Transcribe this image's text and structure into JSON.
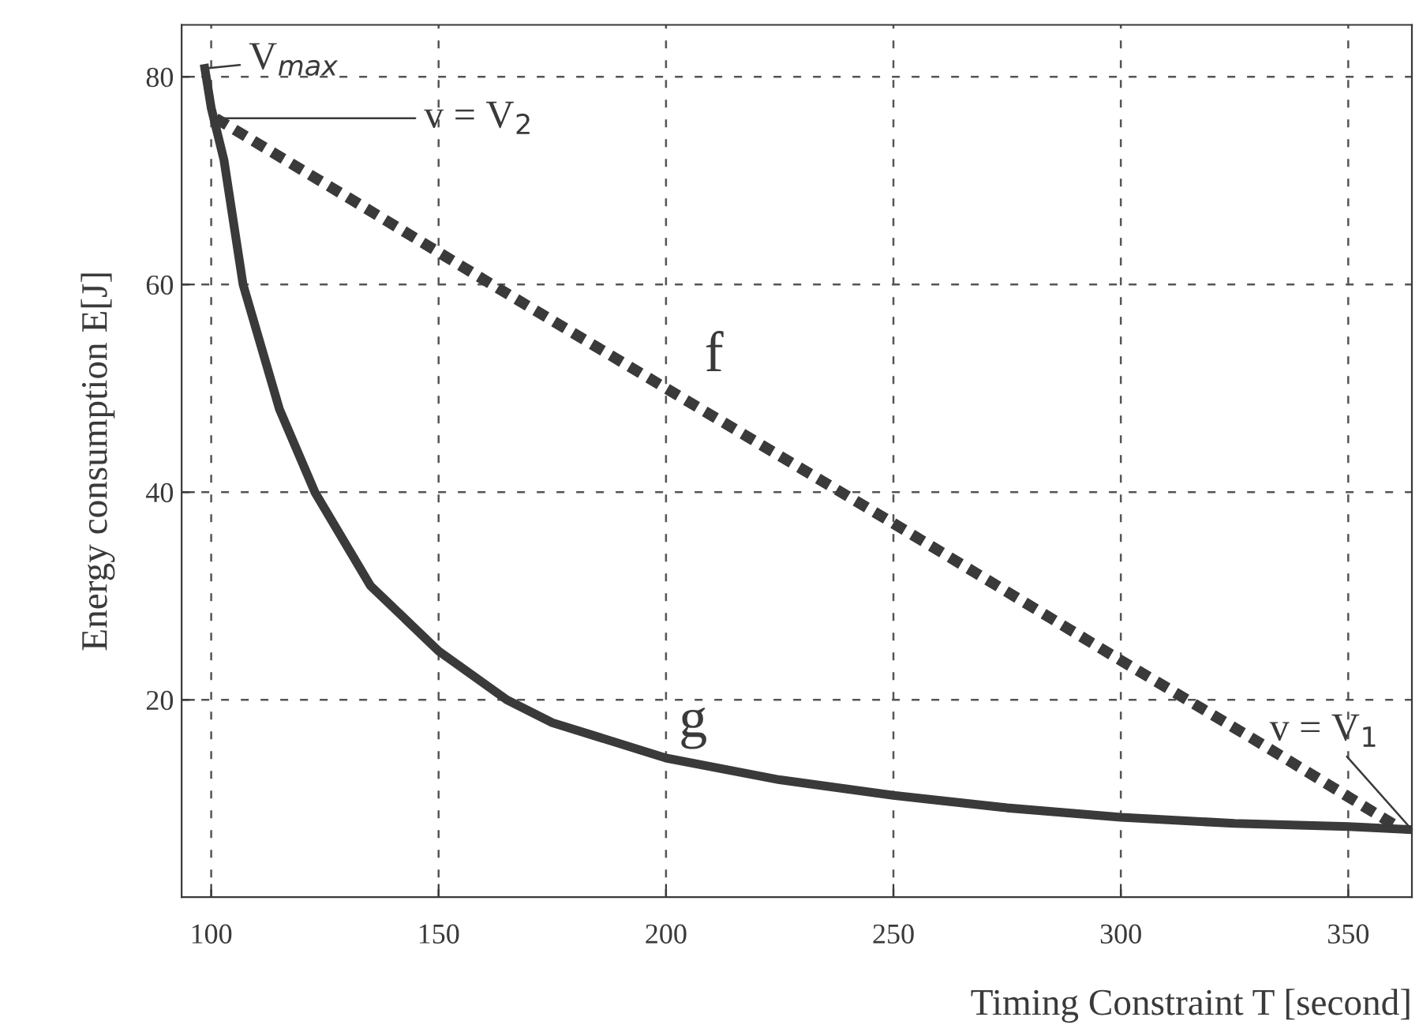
{
  "chart_data": {
    "type": "line",
    "xlabel": "Timing Constraint T [second]",
    "ylabel": "Energy consumption E[J]",
    "xlim": [
      93.5,
      364
    ],
    "ylim": [
      1,
      85
    ],
    "xticks": [
      100,
      150,
      200,
      250,
      300,
      350
    ],
    "yticks": [
      20,
      40,
      60,
      80
    ],
    "grid": true,
    "marker": "none",
    "series": [
      {
        "name": "g",
        "color": "#3a3a3a",
        "line_style": "solid",
        "x": [
          98.6,
          100,
          102.8,
          107,
          115,
          122.8,
          135,
          150,
          165,
          175,
          200,
          225,
          250,
          275,
          300,
          325,
          350,
          364
        ],
        "values": [
          80.8,
          77,
          72,
          60,
          48,
          40,
          31,
          24.7,
          20,
          17.8,
          14.4,
          12.3,
          10.8,
          9.6,
          8.7,
          8.1,
          7.8,
          7.5
        ]
      },
      {
        "name": "f",
        "color": "#3a3a3a",
        "line_style": "dashed",
        "x": [
          101,
          130,
          161.7,
          200,
          250,
          300,
          330,
          360
        ],
        "values": [
          76,
          68.4,
          60,
          50,
          37,
          23.8,
          16,
          8
        ]
      }
    ],
    "annotations": [
      {
        "text": "V$_{max}$",
        "x": 98.6,
        "y": 80.8
      },
      {
        "text": "v = V$_{2}$",
        "x": 101,
        "y": 76
      },
      {
        "text": "v = V$_{1}$",
        "x": 364,
        "y": 7.5
      }
    ]
  }
}
